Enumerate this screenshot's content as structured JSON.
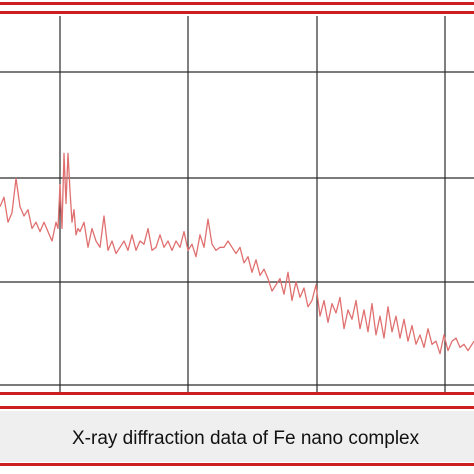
{
  "caption": "X-ray diffraction data of Fe nano complex",
  "colors": {
    "frame_red": "#cc1f1f",
    "grid": "#2b2b2b",
    "series_line": "#e07070",
    "caption_bg": "#efefef",
    "caption_text": "#111111"
  },
  "chart_data": {
    "type": "line",
    "title": "",
    "xlabel": "",
    "ylabel": "",
    "grid": true,
    "xlim": [
      0,
      474
    ],
    "ylim": [
      0,
      100
    ],
    "series": [
      {
        "values_x": [
          0,
          4,
          8,
          12,
          16,
          20,
          24,
          28,
          32,
          36,
          40,
          44,
          48,
          52,
          56,
          58,
          60,
          62,
          64,
          66,
          68,
          70,
          72,
          74,
          76,
          78,
          80,
          84,
          88,
          92,
          96,
          100,
          104,
          108,
          112,
          116,
          120,
          124,
          128,
          132,
          136,
          140,
          144,
          148,
          152,
          156,
          160,
          164,
          168,
          172,
          176,
          180,
          184,
          188,
          192,
          196,
          200,
          204,
          208,
          212,
          216,
          220,
          224,
          228,
          232,
          236,
          240,
          244,
          248,
          252,
          256,
          260,
          264,
          268,
          272,
          276,
          280,
          284,
          288,
          292,
          296,
          300,
          304,
          308,
          312,
          316,
          320,
          324,
          328,
          332,
          336,
          340,
          344,
          348,
          352,
          356,
          360,
          364,
          368,
          372,
          376,
          380,
          384,
          388,
          392,
          396,
          400,
          404,
          408,
          412,
          416,
          420,
          424,
          428,
          432,
          436,
          440,
          444,
          448,
          452,
          456,
          460,
          464,
          468,
          474
        ],
        "values_y": [
          57,
          60,
          52,
          55,
          66,
          57,
          54,
          56,
          50,
          52,
          49,
          52,
          49,
          46,
          52,
          50,
          64,
          50,
          74,
          58,
          74,
          62,
          52,
          56,
          48,
          50,
          49,
          52,
          44,
          50,
          46,
          44,
          54,
          43,
          46,
          42,
          44,
          46,
          43,
          48,
          43,
          46,
          45,
          50,
          43,
          44,
          48,
          44,
          46,
          43,
          46,
          44,
          49,
          43,
          45,
          41,
          48,
          44,
          53,
          45,
          43,
          44,
          44,
          46,
          44,
          42,
          44,
          39,
          41,
          36,
          40,
          35,
          37,
          34,
          30,
          32,
          34,
          29,
          36,
          27,
          33,
          28,
          31,
          25,
          27,
          32,
          22,
          27,
          20,
          26,
          23,
          28,
          18,
          24,
          21,
          27,
          18,
          24,
          17,
          26,
          16,
          22,
          15,
          25,
          17,
          22,
          15,
          21,
          14,
          19,
          13,
          16,
          12,
          18,
          13,
          14,
          10,
          16,
          11,
          14,
          15,
          12,
          13,
          11,
          14
        ]
      }
    ]
  }
}
